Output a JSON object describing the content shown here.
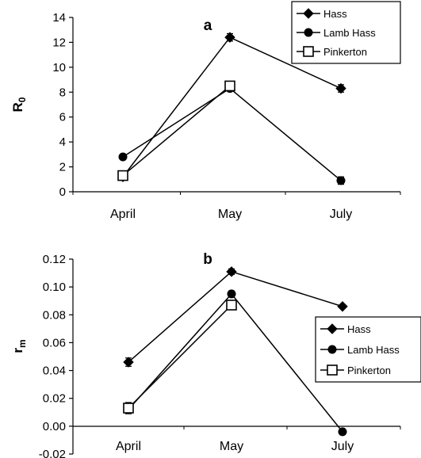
{
  "chart_data": [
    {
      "type": "line",
      "panel_label": "a",
      "ylabel": "R",
      "ylabel_sub": "0",
      "categories": [
        "April",
        "May",
        "July"
      ],
      "ylim": [
        0,
        14
      ],
      "yticks": [
        "0",
        "2",
        "4",
        "6",
        "8",
        "10",
        "12",
        "14"
      ],
      "legend_position": "top-right",
      "series": [
        {
          "name": "Hass",
          "marker": "diamond",
          "values": [
            1.2,
            12.4,
            8.3
          ],
          "errors": [
            0.2,
            0.3,
            0.3
          ]
        },
        {
          "name": "Lamb Hass",
          "marker": "circle",
          "values": [
            2.8,
            8.3,
            0.9
          ],
          "errors": [
            0.2,
            0.2,
            0.3
          ]
        },
        {
          "name": "Pinkerton",
          "marker": "square-open",
          "values": [
            1.3,
            8.5,
            null
          ],
          "errors": [
            0.2,
            0.2,
            null
          ]
        }
      ]
    },
    {
      "type": "line",
      "panel_label": "b",
      "ylabel": "r",
      "ylabel_sub": "m",
      "categories": [
        "April",
        "May",
        "July"
      ],
      "ylim": [
        -0.02,
        0.12
      ],
      "yticks": [
        "-0.02",
        "0.00",
        "0.02",
        "0.04",
        "0.06",
        "0.08",
        "0.10",
        "0.12"
      ],
      "legend_position": "right",
      "series": [
        {
          "name": "Hass",
          "marker": "diamond",
          "values": [
            0.046,
            0.111,
            0.086
          ],
          "errors": [
            0.003,
            0.002,
            0.001
          ]
        },
        {
          "name": "Lamb Hass",
          "marker": "circle",
          "values": [
            0.012,
            0.095,
            -0.004
          ],
          "errors": [
            0.003,
            0.002,
            0.001
          ]
        },
        {
          "name": "Pinkerton",
          "marker": "square-open",
          "values": [
            0.013,
            0.087,
            null
          ],
          "errors": [
            0.004,
            0.002,
            null
          ]
        }
      ]
    }
  ]
}
